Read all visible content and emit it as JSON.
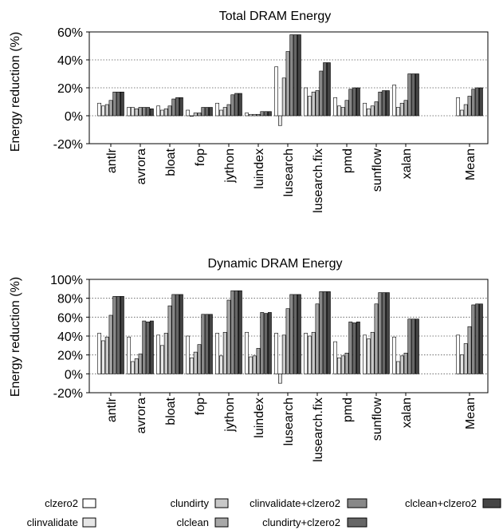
{
  "chart_data": [
    {
      "type": "bar",
      "title": "Total DRAM Energy",
      "ylabel": "Energy reduction (%)",
      "ylim": [
        -20,
        60
      ],
      "yticks": [
        "-20%",
        "0%",
        "20%",
        "40%",
        "60%"
      ],
      "ytick_values": [
        -20,
        0,
        20,
        40,
        60
      ],
      "grid": "horizontal dotted",
      "categories": [
        "antlr",
        "avrora",
        "bloat",
        "fop",
        "jython",
        "luindex",
        "lusearch",
        "lusearch.fix",
        "pmd",
        "sunflow",
        "xalan",
        "Mean"
      ],
      "series": [
        {
          "name": "clzero2",
          "values": [
            9,
            6,
            7,
            4,
            9,
            2,
            35,
            20,
            13,
            9,
            22,
            13
          ]
        },
        {
          "name": "clinvalidate",
          "values": [
            7,
            6,
            4,
            0,
            4,
            1,
            -7,
            14,
            7,
            5,
            6,
            4
          ]
        },
        {
          "name": "clundirty",
          "values": [
            8,
            5,
            5,
            2,
            6,
            1,
            27,
            17,
            6,
            7,
            9,
            8
          ]
        },
        {
          "name": "clclean",
          "values": [
            11,
            6,
            7,
            2,
            8,
            1,
            46,
            18,
            11,
            10,
            11,
            14
          ]
        },
        {
          "name": "clinvalidate+clzero2",
          "values": [
            17,
            6,
            12,
            6,
            15,
            3,
            58,
            32,
            19,
            17,
            30,
            19
          ]
        },
        {
          "name": "clundirty+clzero2",
          "values": [
            17,
            6,
            13,
            6,
            16,
            3,
            58,
            38,
            20,
            18,
            30,
            20
          ]
        },
        {
          "name": "clclean+clzero2",
          "values": [
            17,
            5,
            13,
            6,
            16,
            3,
            58,
            38,
            20,
            18,
            30,
            20
          ]
        }
      ]
    },
    {
      "type": "bar",
      "title": "Dynamic DRAM Energy",
      "ylabel": "Energy reduction (%)",
      "ylim": [
        -20,
        100
      ],
      "yticks": [
        "-20%",
        "0%",
        "20%",
        "40%",
        "60%",
        "80%",
        "100%"
      ],
      "ytick_values": [
        -20,
        0,
        20,
        40,
        60,
        80,
        100
      ],
      "grid": "horizontal dotted",
      "categories": [
        "antlr",
        "avrora",
        "bloat",
        "fop",
        "jython",
        "luindex",
        "lusearch",
        "lusearch.fix",
        "pmd",
        "sunflow",
        "xalan",
        "Mean"
      ],
      "series": [
        {
          "name": "clzero2",
          "values": [
            43,
            39,
            41,
            40,
            43,
            44,
            43,
            43,
            34,
            41,
            39,
            41
          ]
        },
        {
          "name": "clinvalidate",
          "values": [
            35,
            13,
            30,
            17,
            19,
            18,
            -10,
            40,
            17,
            37,
            13,
            20
          ]
        },
        {
          "name": "clundirty",
          "values": [
            39,
            16,
            43,
            23,
            44,
            19,
            41,
            44,
            19,
            44,
            19,
            32
          ]
        },
        {
          "name": "clclean",
          "values": [
            62,
            21,
            72,
            31,
            78,
            27,
            69,
            74,
            22,
            74,
            22,
            50
          ]
        },
        {
          "name": "clinvalidate+clzero2",
          "values": [
            82,
            56,
            84,
            63,
            88,
            65,
            84,
            87,
            55,
            86,
            58,
            73
          ]
        },
        {
          "name": "clundirty+clzero2",
          "values": [
            82,
            55,
            84,
            63,
            88,
            64,
            84,
            87,
            54,
            86,
            58,
            74
          ]
        },
        {
          "name": "clclean+clzero2",
          "values": [
            82,
            56,
            84,
            63,
            88,
            65,
            84,
            87,
            55,
            86,
            58,
            74
          ]
        }
      ]
    }
  ],
  "legend": [
    {
      "label": "clzero2",
      "color": "#ffffff"
    },
    {
      "label": "clinvalidate",
      "color": "#e6e6e6"
    },
    {
      "label": "clundirty",
      "color": "#c8c8c8"
    },
    {
      "label": "clclean",
      "color": "#a8a8a8"
    },
    {
      "label": "clinvalidate+clzero2",
      "color": "#888888"
    },
    {
      "label": "clundirty+clzero2",
      "color": "#666666"
    },
    {
      "label": "clclean+clzero2",
      "color": "#444444"
    }
  ]
}
